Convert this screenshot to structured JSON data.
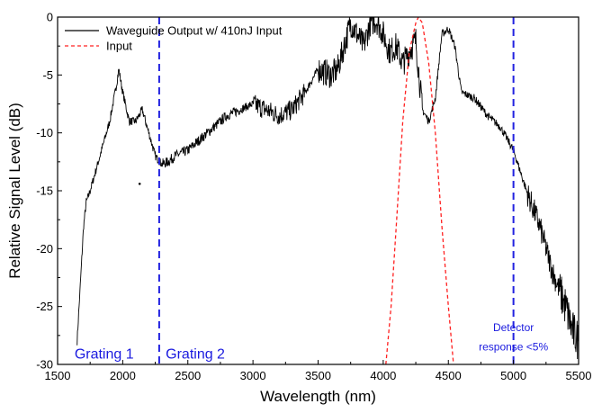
{
  "chart_data": {
    "type": "line",
    "xlabel": "Wavelength (nm)",
    "ylabel": "Relative Signal Level (dB)",
    "xlim": [
      1500,
      5500
    ],
    "ylim": [
      -30,
      0
    ],
    "xticks": [
      1500,
      2000,
      2500,
      3000,
      3500,
      4000,
      4500,
      5000,
      5500
    ],
    "yticks": [
      0,
      -5,
      -10,
      -15,
      -20,
      -25,
      -30
    ],
    "grid": false,
    "legend_position": "top-left",
    "series": [
      {
        "name": "Waveguide Output w/ 410nJ Input",
        "color": "#000000",
        "style": "solid",
        "noisy": true,
        "x": [
          1650,
          1680,
          1700,
          1720,
          1750,
          1800,
          1850,
          1900,
          1950,
          1970,
          2000,
          2050,
          2100,
          2150,
          2200,
          2250,
          2300,
          2350,
          2400,
          2500,
          2600,
          2700,
          2800,
          2900,
          3000,
          3100,
          3200,
          3300,
          3400,
          3500,
          3600,
          3650,
          3700,
          3750,
          3800,
          3850,
          3900,
          3950,
          4000,
          4050,
          4100,
          4150,
          4200,
          4250,
          4300,
          4350,
          4400,
          4450,
          4500,
          4550,
          4600,
          4700,
          4800,
          4900,
          5000,
          5100,
          5200,
          5300,
          5400,
          5450,
          5500
        ],
        "y": [
          -28,
          -22,
          -18,
          -16,
          -15,
          -13,
          -11,
          -9,
          -6,
          -4.5,
          -6.5,
          -9,
          -9,
          -8,
          -10,
          -12,
          -12.7,
          -12.5,
          -12,
          -11.5,
          -10.5,
          -9.5,
          -8.5,
          -8,
          -7.5,
          -8,
          -8.5,
          -8,
          -6.5,
          -4.5,
          -5,
          -4.5,
          -2.5,
          -0.5,
          -1.5,
          -2.5,
          -0.5,
          -0.3,
          -1.5,
          -3,
          -2.5,
          -4,
          -3,
          -2,
          -8,
          -9,
          -7,
          -1.5,
          -1,
          -2.5,
          -6.5,
          -7,
          -8.5,
          -9.5,
          -11.5,
          -15,
          -18,
          -22,
          -25,
          -27,
          -28
        ]
      },
      {
        "name": "Input",
        "color": "#ff2020",
        "style": "dashed",
        "x": [
          4020,
          4060,
          4100,
          4150,
          4200,
          4250,
          4270,
          4300,
          4350,
          4400,
          4450,
          4500,
          4540
        ],
        "y": [
          -30,
          -25,
          -18,
          -9,
          -3,
          -0.5,
          0,
          -0.5,
          -4,
          -10,
          -18,
          -25,
          -30
        ]
      }
    ],
    "vlines": [
      {
        "x": 2280,
        "color": "#2222e0",
        "style": "dashed"
      },
      {
        "x": 5000,
        "color": "#2222e0",
        "style": "dashed"
      }
    ],
    "annotations": [
      {
        "text": "Grating 1",
        "x": 1630,
        "y": -29.2
      },
      {
        "text": "Grating 2",
        "x": 2330,
        "y": -29.2
      },
      {
        "text": "Detector",
        "x": 5000,
        "y": -26.8
      },
      {
        "text": "response <5%",
        "x": 5000,
        "y": -28.5
      }
    ],
    "stray_point": {
      "x": 2130,
      "y": -14.4
    }
  }
}
